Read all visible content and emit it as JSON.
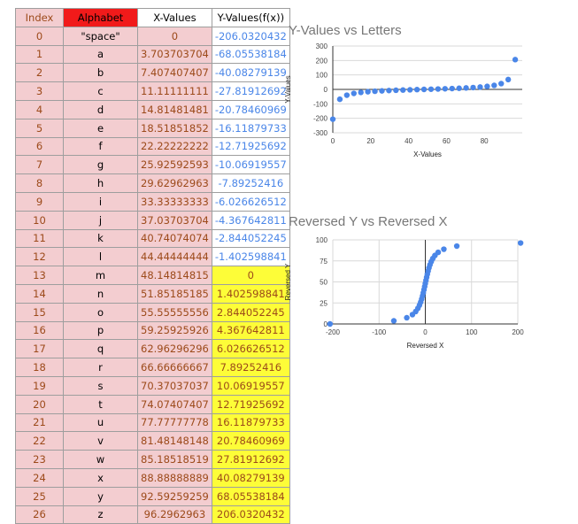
{
  "table": {
    "headers": [
      "Index",
      "Alphabet",
      "X-Values",
      "Y-Values(f(x))"
    ],
    "rows": [
      [
        "0",
        "\"space\"",
        "0",
        "-206.0320432"
      ],
      [
        "1",
        "a",
        "3.703703704",
        "-68.05538184"
      ],
      [
        "2",
        "b",
        "7.407407407",
        "-40.08279139"
      ],
      [
        "3",
        "c",
        "11.11111111",
        "-27.81912692"
      ],
      [
        "4",
        "d",
        "14.81481481",
        "-20.78460969"
      ],
      [
        "5",
        "e",
        "18.51851852",
        "-16.11879733"
      ],
      [
        "6",
        "f",
        "22.22222222",
        "-12.71925692"
      ],
      [
        "7",
        "g",
        "25.92592593",
        "-10.06919557"
      ],
      [
        "8",
        "h",
        "29.62962963",
        "-7.89252416"
      ],
      [
        "9",
        "i",
        "33.33333333",
        "-6.026626512"
      ],
      [
        "10",
        "j",
        "37.03703704",
        "-4.367642811"
      ],
      [
        "11",
        "k",
        "40.74074074",
        "-2.844052245"
      ],
      [
        "12",
        "l",
        "44.44444444",
        "-1.402598841"
      ],
      [
        "13",
        "m",
        "48.14814815",
        "0"
      ],
      [
        "14",
        "n",
        "51.85185185",
        "1.402598841"
      ],
      [
        "15",
        "o",
        "55.55555556",
        "2.844052245"
      ],
      [
        "16",
        "p",
        "59.25925926",
        "4.367642811"
      ],
      [
        "17",
        "q",
        "62.96296296",
        "6.026626512"
      ],
      [
        "18",
        "r",
        "66.66666667",
        "7.89252416"
      ],
      [
        "19",
        "s",
        "70.37037037",
        "10.06919557"
      ],
      [
        "20",
        "t",
        "74.07407407",
        "12.71925692"
      ],
      [
        "21",
        "u",
        "77.77777778",
        "16.11879733"
      ],
      [
        "22",
        "v",
        "81.48148148",
        "20.78460969"
      ],
      [
        "23",
        "w",
        "85.18518519",
        "27.81912692"
      ],
      [
        "24",
        "x",
        "88.88888889",
        "40.08279139"
      ],
      [
        "25",
        "y",
        "92.59259259",
        "68.05538184"
      ],
      [
        "26",
        "z",
        "96.2962963",
        "206.0320432"
      ]
    ],
    "colors": {
      "index_bg": "#f3cdd0",
      "alphabet_header_bg": "#f11a1a",
      "highlight": "#fdfd38",
      "negative_text": "#4a86e8",
      "number_text": "#9c4a1a"
    }
  },
  "chart_data": [
    {
      "type": "scatter",
      "title": "Y-Values  vs Letters",
      "xlabel": "X-Values",
      "ylabel": "Y-Values",
      "xlim": [
        0,
        100
      ],
      "ylim": [
        -300,
        300
      ],
      "xticks": [
        "0",
        "20",
        "40",
        "60",
        "80"
      ],
      "yticks": [
        "300",
        "200",
        "100",
        "0",
        "-100",
        "-200",
        "-300"
      ],
      "grid": "horizontal",
      "color": "#4a86e8",
      "x": [
        0,
        3.7037,
        7.4074,
        11.1111,
        14.8148,
        18.5185,
        22.2222,
        25.9259,
        29.6296,
        33.3333,
        37.037,
        40.7407,
        44.4444,
        48.1481,
        51.8519,
        55.5556,
        59.2593,
        62.963,
        66.6667,
        70.3704,
        74.0741,
        77.7778,
        81.4815,
        85.1852,
        88.8889,
        92.5926,
        96.2963
      ],
      "y": [
        -206.03,
        -68.06,
        -40.08,
        -27.82,
        -20.78,
        -16.12,
        -12.72,
        -10.07,
        -7.89,
        -6.03,
        -4.37,
        -2.84,
        -1.4,
        0,
        1.4,
        2.84,
        4.37,
        6.03,
        7.89,
        10.07,
        12.72,
        16.12,
        20.78,
        27.82,
        40.08,
        68.06,
        206.03
      ]
    },
    {
      "type": "scatter",
      "title": "Reversed Y vs Reversed X",
      "xlabel": "Reversed X",
      "ylabel": "Reversed Y",
      "xlim": [
        -200,
        200
      ],
      "ylim": [
        0,
        100
      ],
      "xticks": [
        "-200",
        "-100",
        "0",
        "100",
        "200"
      ],
      "yticks": [
        "100",
        "75",
        "50",
        "25",
        "0"
      ],
      "grid": "both",
      "color": "#4a86e8",
      "x": [
        -206.03,
        -68.06,
        -40.08,
        -27.82,
        -20.78,
        -16.12,
        -12.72,
        -10.07,
        -7.89,
        -6.03,
        -4.37,
        -2.84,
        -1.4,
        0,
        1.4,
        2.84,
        4.37,
        6.03,
        7.89,
        10.07,
        12.72,
        16.12,
        20.78,
        27.82,
        40.08,
        68.06,
        206.03
      ],
      "y": [
        0,
        3.7037,
        7.4074,
        11.1111,
        14.8148,
        18.5185,
        22.2222,
        25.9259,
        29.6296,
        33.3333,
        37.037,
        40.7407,
        44.4444,
        48.1481,
        51.8519,
        55.5556,
        59.2593,
        62.963,
        66.6667,
        70.3704,
        74.0741,
        77.7778,
        81.4815,
        85.1852,
        88.8889,
        92.5926,
        96.2963
      ]
    }
  ]
}
